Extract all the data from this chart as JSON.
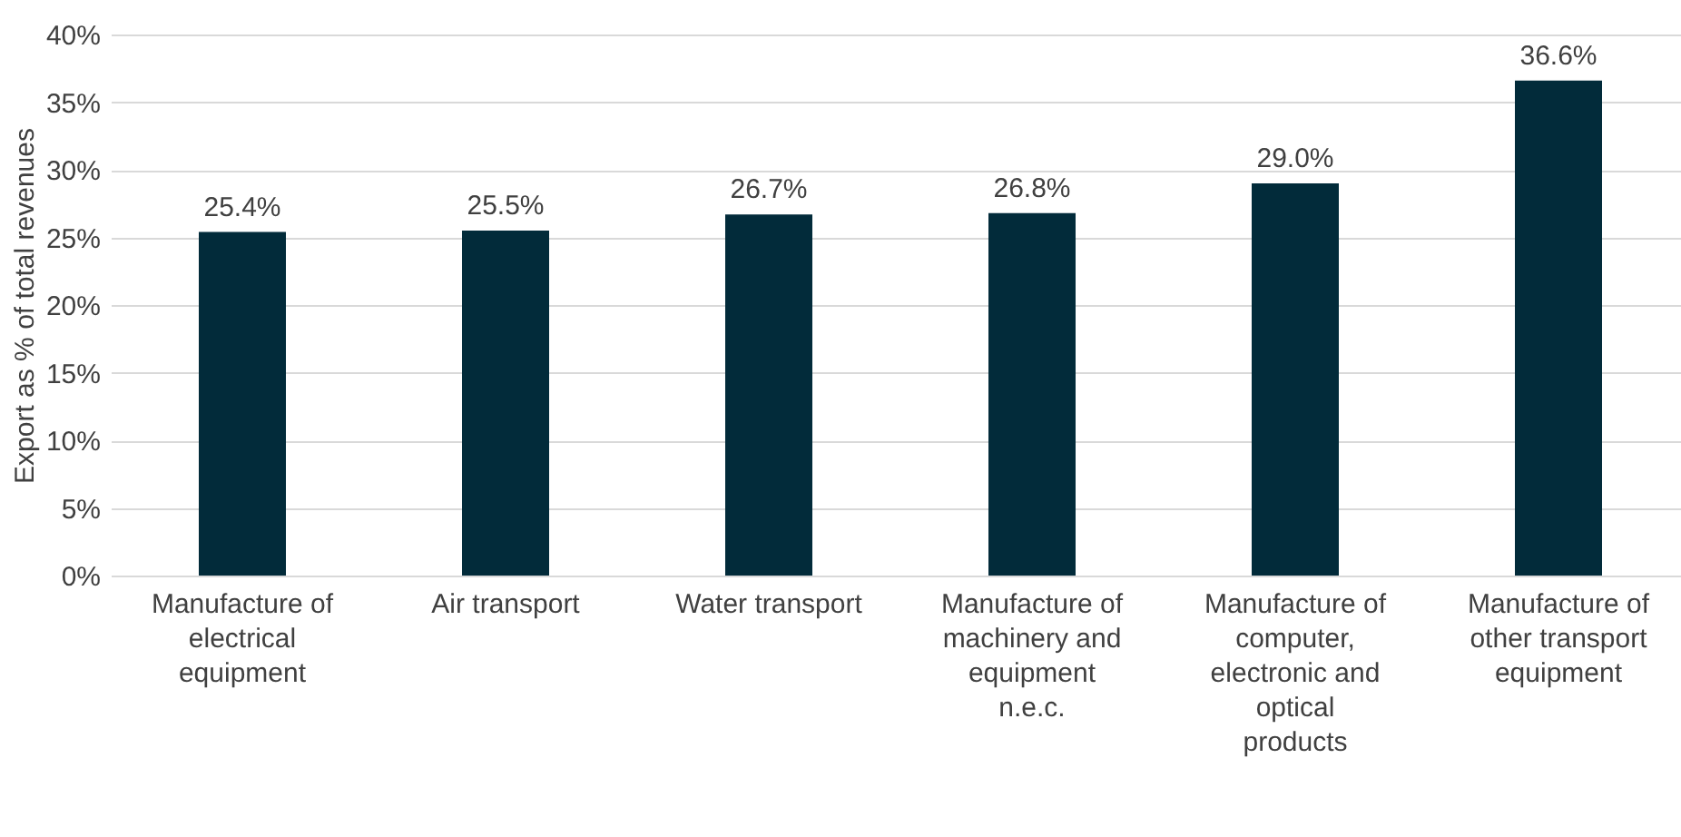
{
  "chart_data": {
    "type": "bar",
    "ylabel": "Export as % of total revenues",
    "categories": [
      "Manufacture of electrical equipment",
      "Air transport",
      "Water transport",
      "Manufacture of machinery and equipment n.e.c.",
      "Manufacture of computer, electronic and optical products",
      "Manufacture of other transport equipment"
    ],
    "values": [
      25.4,
      25.5,
      26.7,
      26.8,
      29.0,
      36.6
    ],
    "value_labels": [
      "25.4%",
      "25.5%",
      "26.7%",
      "26.8%",
      "29.0%",
      "36.6%"
    ],
    "color": "#022b3a",
    "ylim": [
      0,
      40
    ],
    "yticks": [
      {
        "value": 0,
        "label": "0%"
      },
      {
        "value": 5,
        "label": "5%"
      },
      {
        "value": 10,
        "label": "10%"
      },
      {
        "value": 15,
        "label": "15%"
      },
      {
        "value": 20,
        "label": "20%"
      },
      {
        "value": 25,
        "label": "25%"
      },
      {
        "value": 30,
        "label": "30%"
      },
      {
        "value": 35,
        "label": "35%"
      },
      {
        "value": 40,
        "label": "40%"
      }
    ],
    "grid": "y"
  }
}
